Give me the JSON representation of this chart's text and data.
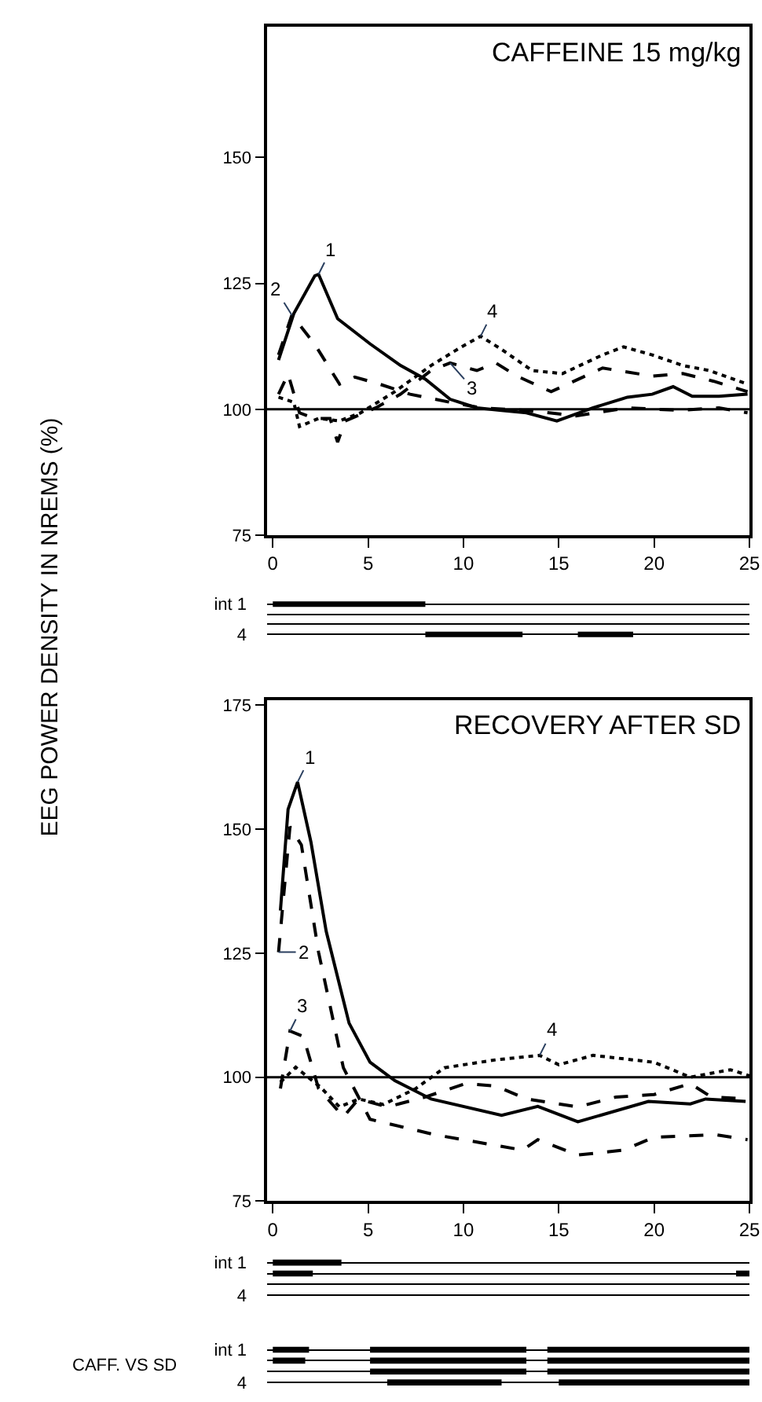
{
  "chart_data": [
    {
      "type": "line",
      "title": "CAFFEINE 15 mg/kg",
      "ylabel": "EEG POWER DENSITY IN NREMS (%)",
      "xlim": [
        -0.3,
        25
      ],
      "xticks": [
        0,
        5,
        10,
        15,
        20,
        25
      ],
      "ylim": [
        75,
        176
      ],
      "yticks": [
        75,
        100,
        125,
        150
      ],
      "ref_lines": [
        {
          "axis": "y",
          "value": 100
        }
      ],
      "series": [
        {
          "name": "1",
          "color": "#000000",
          "line_style": "solid",
          "x": [
            0.3,
            1.1,
            2.2,
            2.4,
            3.4,
            5.1,
            6.7,
            8.0,
            9.3,
            10.7,
            12,
            13.3,
            14.9,
            16.8,
            18.6,
            19.9,
            21,
            22,
            23.4,
            24.9
          ],
          "values": [
            109.8,
            119,
            126.5,
            126.8,
            118,
            113,
            108.7,
            106,
            102,
            100.3,
            99.8,
            99.3,
            97.7,
            100.3,
            102.4,
            103,
            104.5,
            102.6,
            102.6,
            103
          ]
        },
        {
          "name": "2",
          "color": "#000000",
          "line_style": "dashed",
          "x": [
            0.3,
            1,
            2.2,
            3.5,
            4.3,
            5.6,
            7.2,
            9.3,
            10.9,
            13.3,
            15.9,
            18.6,
            21.3,
            23.4,
            24.9
          ],
          "values": [
            110.8,
            118.7,
            112.9,
            105,
            106.4,
            105,
            103,
            101.4,
            100.3,
            99.8,
            98.7,
            100.3,
            99.8,
            100.3,
            99.3
          ]
        },
        {
          "name": "3",
          "color": "#000000",
          "line_style": "dashed",
          "x": [
            0.3,
            0.8,
            1.4,
            2.2,
            3,
            3.4,
            3.8,
            5.4,
            6.7,
            8.3,
            9.3,
            10.7,
            11.7,
            12.8,
            14.6,
            17.3,
            19.9,
            21.5,
            23.1,
            24.9
          ],
          "values": [
            103,
            107,
            99.3,
            98.2,
            98.2,
            93.5,
            97.7,
            100.3,
            103,
            107.7,
            109.2,
            107.7,
            109.2,
            106.6,
            103.5,
            108.2,
            106.6,
            107.1,
            105.6,
            103.5
          ]
        },
        {
          "name": "4",
          "color": "#000000",
          "line_style": "dotted",
          "x": [
            0.3,
            1.1,
            1.4,
            2.4,
            3.5,
            4.6,
            6.4,
            8.3,
            9.9,
            10.9,
            12,
            13.6,
            15.2,
            17.3,
            18.4,
            19.9,
            21.5,
            22.9,
            24.9
          ],
          "values": [
            102.4,
            101.4,
            96.6,
            98.2,
            97.7,
            99.3,
            103.5,
            108.7,
            112.4,
            114.5,
            111.9,
            107.7,
            107.1,
            110.8,
            112.4,
            110.8,
            108.7,
            107.7,
            105
          ]
        }
      ]
    },
    {
      "type": "bar",
      "orientation": "horizontal",
      "categories": [
        "int 1",
        null,
        null,
        "4"
      ],
      "xlim": [
        -0.3,
        25
      ],
      "tick_labels": "y",
      "grid": "y",
      "series": [
        {
          "color": "#000000",
          "base": [
            0,
            null,
            null,
            8
          ],
          "values": [
            8,
            null,
            null,
            5.1
          ]
        },
        {
          "color": "#000000",
          "base": [
            null,
            null,
            null,
            16
          ],
          "values": [
            null,
            null,
            null,
            2.9
          ]
        }
      ]
    },
    {
      "type": "line",
      "title": "RECOVERY AFTER SD",
      "xlim": [
        -0.3,
        25
      ],
      "xticks": [
        0,
        5,
        10,
        15,
        20,
        25
      ],
      "ylim": [
        75,
        176
      ],
      "yticks": [
        75,
        100,
        125,
        150,
        175
      ],
      "ref_lines": [
        {
          "axis": "y",
          "value": 100
        }
      ],
      "series": [
        {
          "name": "1",
          "color": "#000000",
          "line_style": "solid",
          "x": [
            0.4,
            0.8,
            1.3,
            2.0,
            2.8,
            4,
            5.1,
            6.4,
            8.3,
            12,
            13.9,
            16,
            19.7,
            21.9,
            22.7,
            24.8
          ],
          "values": [
            133.6,
            154,
            159.5,
            147.4,
            129.4,
            110.9,
            103,
            99.3,
            95.6,
            92.3,
            94.1,
            91,
            95.1,
            94.6,
            95.6,
            95.1
          ]
        },
        {
          "name": "2",
          "color": "#000000",
          "line_style": "dashed",
          "x": [
            0.3,
            0.9,
            1.5,
            2.4,
            3.7,
            5.1,
            8.5,
            13.1,
            13.9,
            16,
            18.4,
            20,
            23.2,
            24.9
          ],
          "values": [
            125.2,
            150.5,
            146.8,
            125.2,
            101.9,
            91.5,
            88.4,
            85.3,
            87.4,
            84.3,
            85.3,
            87.9,
            88.4,
            87.4
          ]
        },
        {
          "name": "3",
          "color": "#000000",
          "line_style": "dashed",
          "x": [
            0.4,
            0.9,
            1.6,
            2.4,
            3.7,
            4.5,
            6,
            8,
            10.1,
            11.7,
            13.3,
            16,
            18,
            20,
            21.9,
            23,
            25
          ],
          "values": [
            97.7,
            109.3,
            108.2,
            97.7,
            92,
            95.6,
            94,
            96,
            98.7,
            98.2,
            95.6,
            94,
            96,
            96.5,
            98.7,
            96,
            95.6
          ]
        },
        {
          "name": "4",
          "color": "#000000",
          "line_style": "dotted",
          "x": [
            0.4,
            1.2,
            2.5,
            3.5,
            4.5,
            5.8,
            7.5,
            9,
            11.7,
            14,
            15,
            16.8,
            20,
            21.9,
            24,
            25
          ],
          "values": [
            99,
            102,
            98,
            94,
            95.6,
            94.5,
            97.7,
            101.9,
            103.5,
            104.4,
            102.5,
            104.4,
            103,
            100,
            101.5,
            100.3
          ]
        }
      ]
    },
    {
      "type": "bar",
      "orientation": "horizontal",
      "categories": [
        "int 1",
        null,
        null,
        "4"
      ],
      "xlim": [
        -0.3,
        25
      ],
      "tick_labels": "y",
      "grid": "y",
      "series": [
        {
          "color": "#000000",
          "base": [
            0,
            0,
            null,
            null
          ],
          "values": [
            3.6,
            2.1,
            null,
            null
          ]
        },
        {
          "color": "#000000",
          "base": [
            null,
            24.3,
            null,
            null
          ],
          "values": [
            null,
            0.7,
            null,
            null
          ]
        }
      ]
    },
    {
      "type": "bar",
      "orientation": "horizontal",
      "title": "CAFF. VS SD",
      "categories": [
        "int 1",
        null,
        null,
        "4"
      ],
      "xlim": [
        -0.3,
        25
      ],
      "tick_labels": "y",
      "grid": "y",
      "series": [
        {
          "color": "#000000",
          "base": [
            0,
            0,
            5.1,
            6
          ],
          "values": [
            1.9,
            1.7,
            8.2,
            6
          ]
        },
        {
          "color": "#000000",
          "base": [
            5.1,
            5.1,
            14.4,
            15
          ],
          "values": [
            8.2,
            8.2,
            10.6,
            10
          ]
        },
        {
          "color": "#000000",
          "base": [
            14.4,
            14.4,
            null,
            null
          ],
          "values": [
            10.6,
            10.6,
            null,
            null
          ]
        }
      ]
    }
  ]
}
